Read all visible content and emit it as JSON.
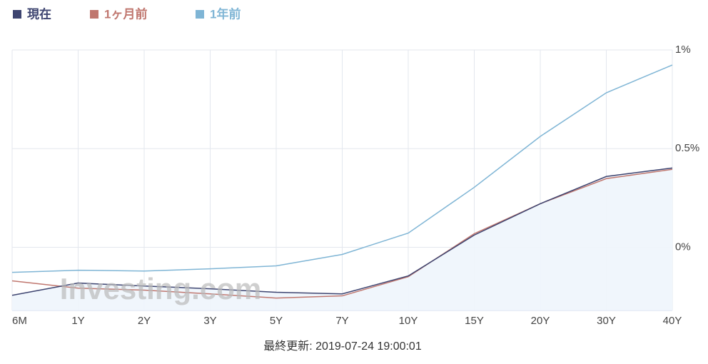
{
  "chart_data": {
    "type": "line",
    "categories": [
      "6M",
      "1Y",
      "2Y",
      "3Y",
      "5Y",
      "7Y",
      "10Y",
      "15Y",
      "20Y",
      "30Y",
      "40Y"
    ],
    "series": [
      {
        "name": "現在",
        "color": "#3d4470",
        "values": [
          -0.243,
          -0.181,
          -0.196,
          -0.21,
          -0.228,
          -0.236,
          -0.145,
          0.062,
          0.221,
          0.359,
          0.402
        ]
      },
      {
        "name": "1ヶ月前",
        "color": "#c0776f",
        "values": [
          -0.17,
          -0.207,
          -0.217,
          -0.236,
          -0.257,
          -0.246,
          -0.149,
          0.069,
          0.221,
          0.348,
          0.395
        ]
      },
      {
        "name": "1年前",
        "color": "#7fb5d5",
        "values": [
          -0.127,
          -0.116,
          -0.12,
          -0.109,
          -0.094,
          -0.036,
          0.072,
          0.304,
          0.562,
          0.783,
          0.924
        ]
      }
    ],
    "ylim": [
      -0.32,
      1
    ],
    "yticks": [
      {
        "value": 0,
        "label": "0%"
      },
      {
        "value": 0.5,
        "label": "0.5%"
      },
      {
        "value": 1,
        "label": "1%"
      }
    ],
    "grid": true,
    "watermark": "Investing.com",
    "footer": "最終更新: 2019-07-24 19:00:01"
  }
}
